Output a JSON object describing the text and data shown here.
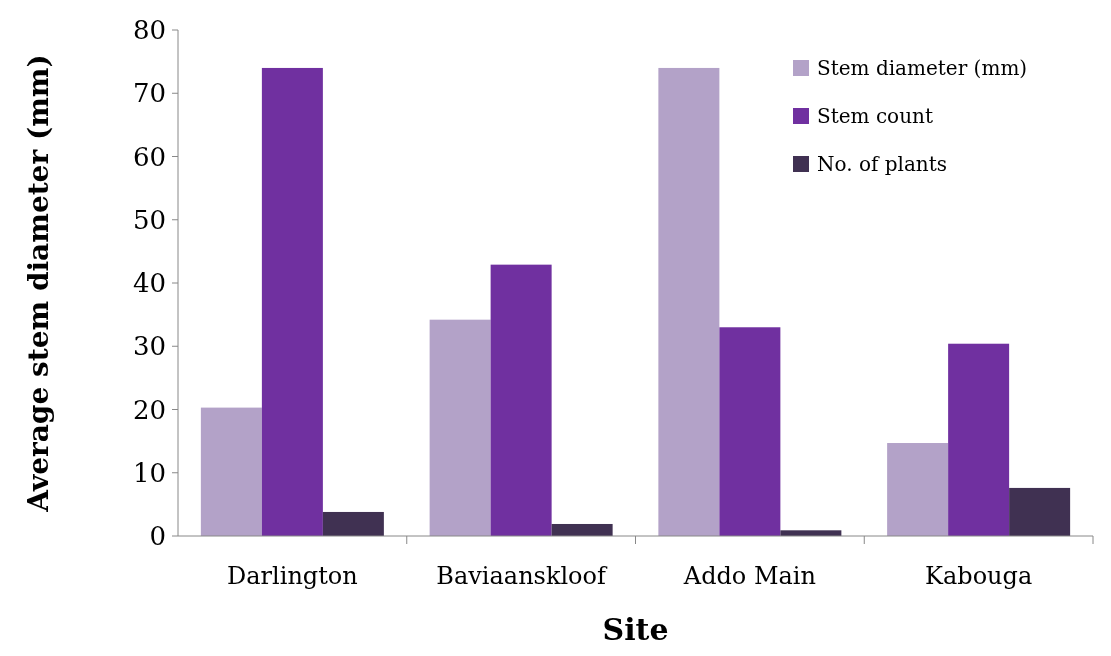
{
  "chart_data": {
    "type": "bar",
    "xlabel": "Site",
    "ylabel": "Average stem diameter (mm)",
    "categories": [
      "Darlington",
      "Baviaanskloof",
      "Addo Main",
      "Kabouga"
    ],
    "series": [
      {
        "name": "Stem diameter (mm)",
        "color": "#b3a2c8",
        "values": [
          20.3,
          34.2,
          74,
          14.7
        ]
      },
      {
        "name": "Stem count",
        "color": "#7030a0",
        "values": [
          74,
          42.9,
          33,
          30.4
        ]
      },
      {
        "name": "No. of plants",
        "color": "#403152",
        "values": [
          3.8,
          1.9,
          0.9,
          7.6
        ]
      }
    ],
    "ylim": [
      0,
      80
    ],
    "yticks": [
      0,
      10,
      20,
      30,
      40,
      50,
      60,
      70,
      80
    ],
    "grid": false,
    "legend": "top right"
  }
}
